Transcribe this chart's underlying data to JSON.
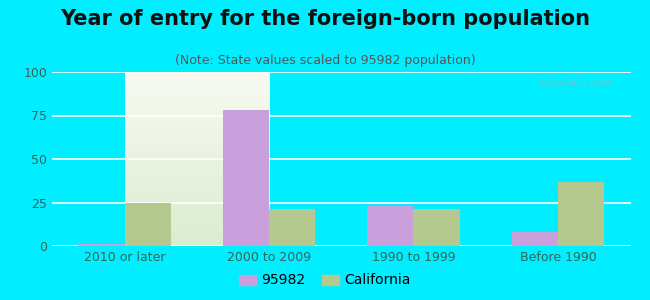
{
  "title": "Year of entry for the foreign-born population",
  "subtitle": "(Note: State values scaled to 95982 population)",
  "categories": [
    "2010 or later",
    "2000 to 2009",
    "1990 to 1999",
    "Before 1990"
  ],
  "values_95982": [
    1,
    78,
    23,
    8
  ],
  "values_california": [
    25,
    21,
    21,
    37
  ],
  "color_95982": "#c9a0dc",
  "color_california": "#b5c98e",
  "legend_95982": "95982",
  "legend_california": "California",
  "ylim": [
    0,
    100
  ],
  "yticks": [
    0,
    25,
    50,
    75,
    100
  ],
  "background_outer": "#00eeff",
  "background_inner_top": "#f8faf2",
  "background_inner_bottom": "#dcecd0",
  "bar_width": 0.32,
  "title_fontsize": 15,
  "subtitle_fontsize": 9,
  "tick_fontsize": 9,
  "watermark_text": "City-Data.com"
}
